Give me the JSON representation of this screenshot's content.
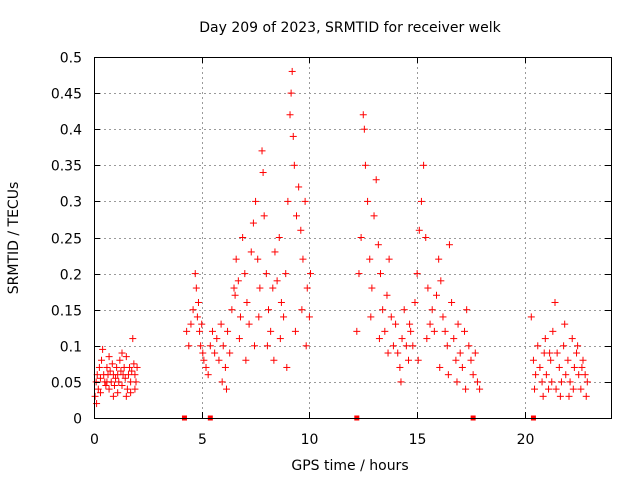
{
  "chart_data": {
    "type": "scatter",
    "title": "Day 209 of 2023, SRMTID for receiver welk",
    "xlabel": "GPS time / hours",
    "ylabel": "SRMTID / TECUs",
    "xlim": [
      0,
      24
    ],
    "ylim": [
      0,
      0.5
    ],
    "x_ticks": [
      0,
      5,
      10,
      15,
      20
    ],
    "x_tick_labels": [
      "0",
      "5",
      "10",
      "15",
      "20"
    ],
    "y_ticks": [
      0,
      0.05,
      0.1,
      0.15,
      0.2,
      0.25,
      0.3,
      0.35,
      0.4,
      0.45,
      0.5
    ],
    "y_tick_labels": [
      "0",
      "0.05",
      "0.1",
      "0.15",
      "0.2",
      "0.25",
      "0.3",
      "0.35",
      "0.4",
      "0.45",
      "0.5"
    ],
    "grid": true,
    "marker": "+",
    "color": "#ff0000",
    "zero_markers_x": [
      4.2,
      5.4,
      12.2,
      17.6,
      20.4
    ],
    "series": [
      {
        "name": "welk",
        "points": [
          [
            0.05,
            0.03
          ],
          [
            0.1,
            0.05
          ],
          [
            0.15,
            0.06
          ],
          [
            0.2,
            0.04
          ],
          [
            0.25,
            0.07
          ],
          [
            0.3,
            0.055
          ],
          [
            0.35,
            0.08
          ],
          [
            0.4,
            0.095
          ],
          [
            0.45,
            0.06
          ],
          [
            0.5,
            0.05
          ],
          [
            0.55,
            0.045
          ],
          [
            0.6,
            0.07
          ],
          [
            0.65,
            0.06
          ],
          [
            0.7,
            0.04
          ],
          [
            0.75,
            0.065
          ],
          [
            0.8,
            0.05
          ],
          [
            0.85,
            0.075
          ],
          [
            0.9,
            0.06
          ],
          [
            0.95,
            0.045
          ],
          [
            1.0,
            0.055
          ],
          [
            1.05,
            0.07
          ],
          [
            1.1,
            0.06
          ],
          [
            1.15,
            0.05
          ],
          [
            1.2,
            0.08
          ],
          [
            1.25,
            0.065
          ],
          [
            1.3,
            0.045
          ],
          [
            1.35,
            0.06
          ],
          [
            1.4,
            0.07
          ],
          [
            1.45,
            0.055
          ],
          [
            1.5,
            0.085
          ],
          [
            1.55,
            0.04
          ],
          [
            1.6,
            0.06
          ],
          [
            1.65,
            0.07
          ],
          [
            1.7,
            0.05
          ],
          [
            1.75,
            0.065
          ],
          [
            1.8,
            0.11
          ],
          [
            1.85,
            0.075
          ],
          [
            1.9,
            0.06
          ],
          [
            1.95,
            0.05
          ],
          [
            2.0,
            0.07
          ],
          [
            0.3,
            0.035
          ],
          [
            0.7,
            0.085
          ],
          [
            1.1,
            0.035
          ],
          [
            1.5,
            0.03
          ],
          [
            1.9,
            0.04
          ],
          [
            0.12,
            0.02
          ],
          [
            0.9,
            0.03
          ],
          [
            1.3,
            0.09
          ],
          [
            1.7,
            0.035
          ],
          [
            0.6,
            0.05
          ],
          [
            4.3,
            0.12
          ],
          [
            4.4,
            0.1
          ],
          [
            4.5,
            0.13
          ],
          [
            4.6,
            0.15
          ],
          [
            4.7,
            0.2
          ],
          [
            4.75,
            0.18
          ],
          [
            4.8,
            0.14
          ],
          [
            4.85,
            0.16
          ],
          [
            4.9,
            0.12
          ],
          [
            4.95,
            0.1
          ],
          [
            5.0,
            0.13
          ],
          [
            5.05,
            0.09
          ],
          [
            5.1,
            0.08
          ],
          [
            5.2,
            0.07
          ],
          [
            5.3,
            0.06
          ],
          [
            5.4,
            0.1
          ],
          [
            5.5,
            0.12
          ],
          [
            5.6,
            0.09
          ],
          [
            5.7,
            0.11
          ],
          [
            5.8,
            0.08
          ],
          [
            5.9,
            0.13
          ],
          [
            6.0,
            0.1
          ],
          [
            6.1,
            0.07
          ],
          [
            6.2,
            0.12
          ],
          [
            6.3,
            0.09
          ],
          [
            6.4,
            0.15
          ],
          [
            6.5,
            0.18
          ],
          [
            6.6,
            0.22
          ],
          [
            6.7,
            0.19
          ],
          [
            6.8,
            0.14
          ],
          [
            6.9,
            0.25
          ],
          [
            7.0,
            0.2
          ],
          [
            7.1,
            0.16
          ],
          [
            7.2,
            0.13
          ],
          [
            7.3,
            0.23
          ],
          [
            7.4,
            0.27
          ],
          [
            7.5,
            0.3
          ],
          [
            7.6,
            0.22
          ],
          [
            7.7,
            0.18
          ],
          [
            7.8,
            0.37
          ],
          [
            7.85,
            0.34
          ],
          [
            7.9,
            0.28
          ],
          [
            8.0,
            0.2
          ],
          [
            8.1,
            0.15
          ],
          [
            8.2,
            0.12
          ],
          [
            8.3,
            0.18
          ],
          [
            8.4,
            0.23
          ],
          [
            8.5,
            0.19
          ],
          [
            8.6,
            0.25
          ],
          [
            8.7,
            0.16
          ],
          [
            8.8,
            0.14
          ],
          [
            8.9,
            0.2
          ],
          [
            9.0,
            0.3
          ],
          [
            9.1,
            0.42
          ],
          [
            9.15,
            0.45
          ],
          [
            9.2,
            0.48
          ],
          [
            9.25,
            0.39
          ],
          [
            9.3,
            0.35
          ],
          [
            9.4,
            0.28
          ],
          [
            9.5,
            0.32
          ],
          [
            9.6,
            0.26
          ],
          [
            9.7,
            0.22
          ],
          [
            9.8,
            0.3
          ],
          [
            9.9,
            0.18
          ],
          [
            10.0,
            0.14
          ],
          [
            10.05,
            0.2
          ],
          [
            8.95,
            0.07
          ],
          [
            9.35,
            0.12
          ],
          [
            9.65,
            0.15
          ],
          [
            9.85,
            0.1
          ],
          [
            6.55,
            0.17
          ],
          [
            6.75,
            0.11
          ],
          [
            7.05,
            0.08
          ],
          [
            7.45,
            0.1
          ],
          [
            7.65,
            0.14
          ],
          [
            8.05,
            0.1
          ],
          [
            8.35,
            0.08
          ],
          [
            8.65,
            0.11
          ],
          [
            5.95,
            0.05
          ],
          [
            6.15,
            0.04
          ],
          [
            12.2,
            0.12
          ],
          [
            12.3,
            0.2
          ],
          [
            12.4,
            0.25
          ],
          [
            12.5,
            0.42
          ],
          [
            12.55,
            0.4
          ],
          [
            12.6,
            0.35
          ],
          [
            12.7,
            0.3
          ],
          [
            12.8,
            0.22
          ],
          [
            12.9,
            0.18
          ],
          [
            13.0,
            0.28
          ],
          [
            13.1,
            0.33
          ],
          [
            13.2,
            0.24
          ],
          [
            13.3,
            0.2
          ],
          [
            13.4,
            0.15
          ],
          [
            13.5,
            0.12
          ],
          [
            13.6,
            0.17
          ],
          [
            13.7,
            0.22
          ],
          [
            13.8,
            0.14
          ],
          [
            13.9,
            0.1
          ],
          [
            14.0,
            0.13
          ],
          [
            14.1,
            0.09
          ],
          [
            14.2,
            0.07
          ],
          [
            14.3,
            0.11
          ],
          [
            14.4,
            0.15
          ],
          [
            14.5,
            0.1
          ],
          [
            14.6,
            0.08
          ],
          [
            14.7,
            0.12
          ],
          [
            14.8,
            0.1
          ],
          [
            14.9,
            0.16
          ],
          [
            15.0,
            0.2
          ],
          [
            15.1,
            0.26
          ],
          [
            15.2,
            0.3
          ],
          [
            15.3,
            0.35
          ],
          [
            15.4,
            0.25
          ],
          [
            15.5,
            0.18
          ],
          [
            15.6,
            0.13
          ],
          [
            15.7,
            0.15
          ],
          [
            15.8,
            0.12
          ],
          [
            15.9,
            0.17
          ],
          [
            16.0,
            0.22
          ],
          [
            16.1,
            0.19
          ],
          [
            16.2,
            0.14
          ],
          [
            16.3,
            0.12
          ],
          [
            16.4,
            0.1
          ],
          [
            16.5,
            0.24
          ],
          [
            16.6,
            0.16
          ],
          [
            16.7,
            0.11
          ],
          [
            16.8,
            0.08
          ],
          [
            16.9,
            0.13
          ],
          [
            17.0,
            0.09
          ],
          [
            17.1,
            0.07
          ],
          [
            17.2,
            0.12
          ],
          [
            17.3,
            0.15
          ],
          [
            17.4,
            0.1
          ],
          [
            17.5,
            0.08
          ],
          [
            17.6,
            0.06
          ],
          [
            17.7,
            0.09
          ],
          [
            17.8,
            0.05
          ],
          [
            17.9,
            0.04
          ],
          [
            12.85,
            0.14
          ],
          [
            13.25,
            0.11
          ],
          [
            13.65,
            0.09
          ],
          [
            14.25,
            0.05
          ],
          [
            14.65,
            0.13
          ],
          [
            15.05,
            0.08
          ],
          [
            15.45,
            0.11
          ],
          [
            16.05,
            0.07
          ],
          [
            16.45,
            0.06
          ],
          [
            16.85,
            0.05
          ],
          [
            17.25,
            0.04
          ],
          [
            20.3,
            0.14
          ],
          [
            20.4,
            0.08
          ],
          [
            20.5,
            0.06
          ],
          [
            20.6,
            0.1
          ],
          [
            20.7,
            0.07
          ],
          [
            20.8,
            0.05
          ],
          [
            20.9,
            0.09
          ],
          [
            21.0,
            0.06
          ],
          [
            21.1,
            0.04
          ],
          [
            21.2,
            0.08
          ],
          [
            21.3,
            0.12
          ],
          [
            21.4,
            0.16
          ],
          [
            21.5,
            0.09
          ],
          [
            21.6,
            0.07
          ],
          [
            21.7,
            0.05
          ],
          [
            21.8,
            0.1
          ],
          [
            21.9,
            0.06
          ],
          [
            22.0,
            0.08
          ],
          [
            22.1,
            0.05
          ],
          [
            22.2,
            0.11
          ],
          [
            22.3,
            0.07
          ],
          [
            22.4,
            0.09
          ],
          [
            22.5,
            0.06
          ],
          [
            22.6,
            0.04
          ],
          [
            22.7,
            0.08
          ],
          [
            22.8,
            0.06
          ],
          [
            22.9,
            0.05
          ],
          [
            20.45,
            0.04
          ],
          [
            20.85,
            0.03
          ],
          [
            21.25,
            0.05
          ],
          [
            21.65,
            0.03
          ],
          [
            22.05,
            0.03
          ],
          [
            22.45,
            0.1
          ],
          [
            22.85,
            0.03
          ],
          [
            21.45,
            0.04
          ],
          [
            20.95,
            0.11
          ],
          [
            21.85,
            0.13
          ],
          [
            22.25,
            0.04
          ],
          [
            22.65,
            0.07
          ],
          [
            21.15,
            0.09
          ]
        ]
      }
    ]
  }
}
